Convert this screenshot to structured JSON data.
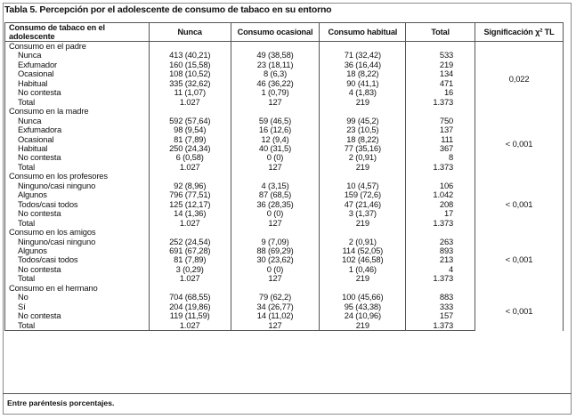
{
  "title": "Tabla 5. Percepción por el adolescente de consumo de tabaco en su entorno",
  "table": {
    "header": [
      "Consumo de tabaco en el adolescente",
      "Nunca",
      "Consumo ocasional",
      "Consumo habitual",
      "Total",
      "Significación χ² TL"
    ],
    "sections": [
      {
        "label": "Consumo en el padre",
        "significance": "0,022",
        "rows": [
          [
            "Nunca",
            "413 (40,21)",
            "49 (38,58)",
            "71 (32,42)",
            "533"
          ],
          [
            "Exfumador",
            "160 (15,58)",
            "23 (18,11)",
            "36 (16,44)",
            "219"
          ],
          [
            "Ocasional",
            "108 (10,52)",
            "8 (6,3)",
            "18 (8,22)",
            "134"
          ],
          [
            "Habitual",
            "335 (32,62)",
            "46 (36,22)",
            "90 (41,1)",
            "471"
          ],
          [
            "No contesta",
            "11 (1,07)",
            "1 (0,79)",
            "4 (1,83)",
            "16"
          ],
          [
            "Total",
            "1.027",
            "127",
            "219",
            "1.373"
          ]
        ]
      },
      {
        "label": "Consumo en la madre",
        "significance": "< 0,001",
        "rows": [
          [
            "Nunca",
            "592 (57,64)",
            "59 (46,5)",
            "99 (45,2)",
            "750"
          ],
          [
            "Exfumadora",
            "98 (9,54)",
            "16 (12,6)",
            "23 (10,5)",
            "137"
          ],
          [
            "Ocasional",
            "81 (7,89)",
            "12 (9,4)",
            "18 (8,22)",
            "111"
          ],
          [
            "Habitual",
            "250 (24,34)",
            "40 (31,5)",
            "77 (35,16)",
            "367"
          ],
          [
            "No contesta",
            "6 (0,58)",
            "0 (0)",
            "2 (0,91)",
            "8"
          ],
          [
            "Total",
            "1.027",
            "127",
            "219",
            "1.373"
          ]
        ]
      },
      {
        "label": "Consumo en los profesores",
        "significance": "< 0,001",
        "rows": [
          [
            "Ninguno/casi ninguno",
            "92 (8,96)",
            "4 (3,15)",
            "10 (4,57)",
            "106"
          ],
          [
            "Algunos",
            "796 (77,51)",
            "87 (68,5)",
            "159 (72,6)",
            "1.042"
          ],
          [
            "Todos/casi todos",
            "125 (12,17)",
            "36 (28,35)",
            "47 (21,46)",
            "208"
          ],
          [
            "No contesta",
            "14 (1,36)",
            "0 (0)",
            "3 (1,37)",
            "17"
          ],
          [
            "Total",
            "1.027",
            "127",
            "219",
            "1.373"
          ]
        ]
      },
      {
        "label": "Consumo en los amigos",
        "significance": "< 0,001",
        "rows": [
          [
            "Ninguno/casi ninguno",
            "252 (24,54)",
            "9 (7,09)",
            "2 (0,91)",
            "263"
          ],
          [
            "Algunos",
            "691 (67,28)",
            "88 (69,29)",
            "114 (52,05)",
            "893"
          ],
          [
            "Todos/casi todos",
            "81 (7,89)",
            "30 (23,62)",
            "102 (46,58)",
            "213"
          ],
          [
            "No contesta",
            "3 (0,29)",
            "0 (0)",
            "1 (0,46)",
            "4"
          ],
          [
            "Total",
            "1.027",
            "127",
            "219",
            "1.373"
          ]
        ]
      },
      {
        "label": "Consumo en el hermano",
        "significance": "< 0,001",
        "rows": [
          [
            "No",
            "704 (68,55)",
            "79 (62,2)",
            "100 (45,66)",
            "883"
          ],
          [
            "Sí",
            "204 (19,86)",
            "34 (26,77)",
            "95 (43,38)",
            "333"
          ],
          [
            "No contesta",
            "119 (11,59)",
            "14 (11,02)",
            "24 (10,96)",
            "157"
          ],
          [
            "Total",
            "1.027",
            "127",
            "219",
            "1.373"
          ]
        ]
      }
    ]
  },
  "footnote": "Entre paréntesis porcentajes."
}
